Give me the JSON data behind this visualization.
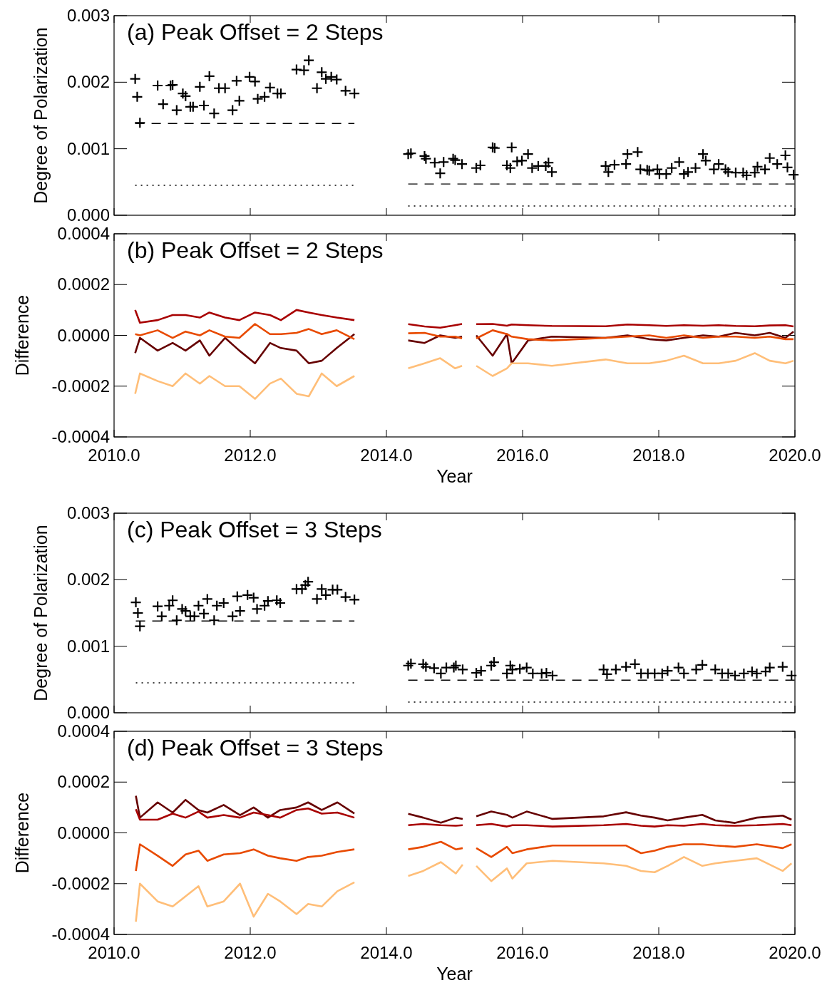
{
  "chart_data": [
    {
      "type": "scatter",
      "title": "(a) Peak Offset = 2 Steps",
      "ylabel": "Degree of Polarization",
      "xlim": [
        2010,
        2020
      ],
      "xticks": [
        2010,
        2012,
        2014,
        2016,
        2018,
        2020
      ],
      "ylim": [
        0,
        0.003
      ],
      "yticks": [
        {
          "value": 0,
          "label": "0.000"
        },
        {
          "value": 0.001,
          "label": "0.001"
        },
        {
          "value": 0.002,
          "label": "0.002"
        },
        {
          "value": 0.003,
          "label": "0.003"
        }
      ],
      "tick_labels": "y",
      "marker": "cross",
      "series": [
        {
          "color": "#000000",
          "x": [
            2010.31,
            2010.34,
            2010.38,
            2010.64,
            2010.72,
            2010.83,
            2010.86,
            2010.92,
            2011.01,
            2011.05,
            2011.12,
            2011.16,
            2011.26,
            2011.32,
            2011.4,
            2011.47,
            2011.54,
            2011.63,
            2011.74,
            2011.8,
            2011.84,
            2011.99,
            2012.07,
            2012.11,
            2012.21,
            2012.29,
            2012.4,
            2012.45,
            2012.68,
            2012.79,
            2012.86,
            2012.98,
            2013.05,
            2013.11,
            2013.19,
            2013.27,
            2013.4,
            2013.53,
            2014.32,
            2014.36,
            2014.56,
            2014.58,
            2014.71,
            2014.79,
            2014.84,
            2014.98,
            2015.01,
            2015.11,
            2015.32,
            2015.38,
            2015.56,
            2015.59,
            2015.77,
            2015.82,
            2015.84,
            2015.92,
            2015.99,
            2016.08,
            2016.14,
            2016.23,
            2016.34,
            2016.38,
            2016.43,
            2017.22,
            2017.26,
            2017.35,
            2017.52,
            2017.54,
            2017.69,
            2017.73,
            2017.83,
            2017.86,
            2017.98,
            2018.01,
            2018.11,
            2018.19,
            2018.3,
            2018.37,
            2018.43,
            2018.54,
            2018.65,
            2018.69,
            2018.81,
            2018.88,
            2018.98,
            2019.02,
            2019.13,
            2019.24,
            2019.29,
            2019.41,
            2019.45,
            2019.56,
            2019.63,
            2019.74,
            2019.86,
            2019.89,
            2019.98
          ],
          "values": [
            0.00205,
            0.00178,
            0.00139,
            0.00195,
            0.00167,
            0.00195,
            0.00196,
            0.00158,
            0.00183,
            0.00179,
            0.00163,
            0.00163,
            0.00193,
            0.00165,
            0.00209,
            0.00153,
            0.00191,
            0.00191,
            0.00158,
            0.00202,
            0.00172,
            0.00208,
            0.00201,
            0.00175,
            0.00178,
            0.00192,
            0.00183,
            0.00183,
            0.00219,
            0.00218,
            0.00233,
            0.00191,
            0.00215,
            0.00205,
            0.00208,
            0.00204,
            0.00187,
            0.00183,
            0.00092,
            0.00093,
            0.00089,
            0.00085,
            0.00079,
            0.00063,
            0.0008,
            0.00085,
            0.00083,
            0.00077,
            0.00071,
            0.00075,
            0.00102,
            0.00101,
            0.00075,
            0.00071,
            0.00102,
            0.00081,
            0.00082,
            0.00092,
            0.00071,
            0.00074,
            0.00074,
            0.00079,
            0.00065,
            0.00074,
            0.00065,
            0.00076,
            0.00077,
            0.00092,
            0.00095,
            0.00069,
            0.00068,
            0.00067,
            0.00069,
            0.00062,
            0.00062,
            0.00071,
            0.0008,
            0.00062,
            0.00065,
            0.00071,
            0.00092,
            0.00082,
            0.00069,
            0.00077,
            0.00069,
            0.00065,
            0.00064,
            0.00064,
            0.0006,
            0.00064,
            0.00073,
            0.00069,
            0.00086,
            0.00077,
            0.0009,
            0.00072,
            0.00061
          ]
        },
        {
          "type": "line",
          "marker": "none",
          "line_style": "dashed",
          "color": "#000000",
          "x": [
            2010.31,
            2013.53
          ],
          "values": [
            0.00138,
            0.00138
          ]
        },
        {
          "type": "line",
          "marker": "none",
          "line_style": "dotted",
          "color": "#000000",
          "x": [
            2010.31,
            2013.53
          ],
          "values": [
            0.00045,
            0.00045
          ]
        },
        {
          "type": "line",
          "marker": "none",
          "line_style": "dashed",
          "color": "#000000",
          "x": [
            2014.32,
            2020
          ],
          "values": [
            0.00047,
            0.00047
          ]
        },
        {
          "type": "line",
          "marker": "none",
          "line_style": "dotted",
          "color": "#000000",
          "x": [
            2014.32,
            2020
          ],
          "values": [
            0.00014,
            0.00014
          ]
        }
      ]
    },
    {
      "type": "line",
      "title": "(b) Peak Offset = 2 Steps",
      "ylabel": "Difference",
      "xlabel": "Year",
      "xlim": [
        2010,
        2020
      ],
      "xticks": [
        {
          "value": 2010,
          "label": "2010.0"
        },
        {
          "value": 2012,
          "label": "2012.0"
        },
        {
          "value": 2014,
          "label": "2014.0"
        },
        {
          "value": 2016,
          "label": "2016.0"
        },
        {
          "value": 2018,
          "label": "2018.0"
        },
        {
          "value": 2020,
          "label": "2020.0"
        }
      ],
      "ylim": [
        -0.0004,
        0.0004
      ],
      "yticks": [
        {
          "value": -0.0004,
          "label": "-0.0004"
        },
        {
          "value": -0.0002,
          "label": "-0.0002"
        },
        {
          "value": 0,
          "label": "0.0000"
        },
        {
          "value": 0.0002,
          "label": "0.0002"
        },
        {
          "value": 0.0004,
          "label": "0.0004"
        }
      ],
      "x": [
        2010.31,
        2010.38,
        2010.64,
        2010.86,
        2011.05,
        2011.26,
        2011.4,
        2011.63,
        2011.84,
        2012.07,
        2012.29,
        2012.45,
        2012.68,
        2012.86,
        2013.05,
        2013.27,
        2013.53,
        2013.9,
        2014.32,
        2014.56,
        2014.79,
        2015.01,
        2015.11,
        2015.2,
        2015.32,
        2015.56,
        2015.77,
        2015.84,
        2016.08,
        2016.43,
        2017.22,
        2017.54,
        2017.86,
        2018.11,
        2018.37,
        2018.65,
        2018.88,
        2019.13,
        2019.41,
        2019.63,
        2019.86,
        2019.98
      ],
      "series": [
        {
          "color": "#660000",
          "values": [
            -7e-05,
            -1e-05,
            -6e-05,
            -3e-05,
            -6e-05,
            -2e-05,
            -8e-05,
            -1e-05,
            -6e-05,
            -0.00011,
            -3e-05,
            -5e-05,
            -6e-05,
            -0.00011,
            -0.0001,
            -5e-05,
            5e-06,
            null,
            -2e-05,
            -3e-05,
            0,
            -1e-05,
            -5e-06,
            null,
            0,
            -8e-05,
            5e-06,
            -0.00011,
            -2e-05,
            -5e-06,
            -1e-05,
            0,
            -1.5e-05,
            -2e-05,
            -1e-05,
            0,
            -5e-06,
            1e-05,
            0,
            1e-05,
            -1e-05,
            1.5e-05
          ]
        },
        {
          "color": "#a80000",
          "values": [
            0.0001,
            5e-05,
            6e-05,
            8e-05,
            8e-05,
            7e-05,
            9e-05,
            7e-05,
            6e-05,
            9e-05,
            8e-05,
            6e-05,
            0.0001,
            9e-05,
            8e-05,
            7e-05,
            6e-05,
            null,
            4.4e-05,
            3.5e-05,
            3e-05,
            4e-05,
            4.5e-05,
            null,
            4.4e-05,
            4.5e-05,
            3.8e-05,
            4.3e-05,
            4e-05,
            3.7e-05,
            3.6e-05,
            4.3e-05,
            4e-05,
            3.7e-05,
            4e-05,
            3.8e-05,
            4e-05,
            3.7e-05,
            3.6e-05,
            3.9e-05,
            4e-05,
            3.5e-05
          ]
        },
        {
          "color": "#e84a00",
          "values": [
            5e-06,
            0,
            2e-05,
            -1e-05,
            1.5e-05,
            0,
            2e-05,
            -5e-06,
            -1e-05,
            4.5e-05,
            5e-06,
            5e-06,
            1e-05,
            2.5e-05,
            5e-06,
            2e-05,
            -1.5e-05,
            null,
            8e-06,
            1e-05,
            -5e-06,
            -5e-06,
            -1.2e-05,
            null,
            -1.2e-05,
            2e-05,
            5e-06,
            -5e-06,
            -1.5e-05,
            -2e-05,
            -1e-05,
            -5e-06,
            0,
            -1e-05,
            0,
            -1e-05,
            -5e-06,
            -5e-06,
            -1e-05,
            -5e-06,
            -1.5e-05,
            -1.5e-05
          ]
        },
        {
          "color": "#ffbe78",
          "values": [
            -0.00023,
            -0.00015,
            -0.00018,
            -0.0002,
            -0.00015,
            -0.00019,
            -0.00016,
            -0.0002,
            -0.0002,
            -0.00025,
            -0.00019,
            -0.00017,
            -0.00023,
            -0.00024,
            -0.00015,
            -0.0002,
            -0.00016,
            null,
            -0.00013,
            -0.00011,
            -9e-05,
            -0.00013,
            -0.00012,
            null,
            -0.00012,
            -0.00016,
            -0.00013,
            -0.00011,
            -0.00011,
            -0.00012,
            -9.5e-05,
            -0.00011,
            -0.00011,
            -0.0001,
            -8e-05,
            -0.00011,
            -0.00011,
            -0.0001,
            -7e-05,
            -0.0001,
            -0.00011,
            -0.0001
          ]
        }
      ]
    },
    {
      "type": "scatter",
      "title": "(c) Peak Offset = 3 Steps",
      "ylabel": "Degree of Polarization",
      "xlim": [
        2010,
        2020
      ],
      "xticks": [
        2010,
        2012,
        2014,
        2016,
        2018,
        2020
      ],
      "ylim": [
        0,
        0.003
      ],
      "yticks": [
        {
          "value": 0,
          "label": "0.000"
        },
        {
          "value": 0.001,
          "label": "0.001"
        },
        {
          "value": 0.002,
          "label": "0.002"
        },
        {
          "value": 0.003,
          "label": "0.003"
        }
      ],
      "tick_labels": "y",
      "marker": "cross",
      "series": [
        {
          "color": "#000000",
          "x": [
            2010.32,
            2010.35,
            2010.38,
            2010.64,
            2010.7,
            2010.81,
            2010.86,
            2010.92,
            2011.0,
            2011.05,
            2011.12,
            2011.18,
            2011.24,
            2011.32,
            2011.37,
            2011.47,
            2011.51,
            2011.61,
            2011.74,
            2011.81,
            2011.85,
            2011.96,
            2012.05,
            2012.1,
            2012.21,
            2012.26,
            2012.39,
            2012.44,
            2012.68,
            2012.76,
            2012.81,
            2012.85,
            2012.98,
            2013.05,
            2013.11,
            2013.21,
            2013.28,
            2013.4,
            2013.53,
            2014.32,
            2014.36,
            2014.54,
            2014.58,
            2014.7,
            2014.8,
            2014.88,
            2014.99,
            2015.02,
            2015.12,
            2015.32,
            2015.39,
            2015.54,
            2015.58,
            2015.77,
            2015.82,
            2015.85,
            2015.96,
            2016.06,
            2016.15,
            2016.28,
            2016.35,
            2016.44,
            2017.19,
            2017.24,
            2017.37,
            2017.52,
            2017.65,
            2017.74,
            2017.84,
            2017.94,
            2018.05,
            2018.13,
            2018.29,
            2018.37,
            2018.55,
            2018.64,
            2018.83,
            2018.93,
            2019.02,
            2019.12,
            2019.25,
            2019.37,
            2019.44,
            2019.57,
            2019.63,
            2019.82,
            2019.95
          ],
          "values": [
            0.00166,
            0.0015,
            0.0013,
            0.0016,
            0.00145,
            0.00161,
            0.00169,
            0.00139,
            0.00156,
            0.00153,
            0.00145,
            0.00145,
            0.00161,
            0.00149,
            0.00171,
            0.00139,
            0.00161,
            0.00165,
            0.00145,
            0.00175,
            0.00153,
            0.00177,
            0.00173,
            0.00156,
            0.00161,
            0.00168,
            0.00169,
            0.00165,
            0.00186,
            0.00186,
            0.00192,
            0.00197,
            0.00171,
            0.00186,
            0.00177,
            0.00185,
            0.00185,
            0.00174,
            0.0017,
            0.00071,
            0.00074,
            0.00073,
            0.00069,
            0.00067,
            0.00059,
            0.00068,
            0.00068,
            0.00071,
            0.00065,
            0.0006,
            0.00063,
            0.00071,
            0.00076,
            0.00059,
            0.00071,
            0.00065,
            0.00066,
            0.00068,
            0.00059,
            0.00059,
            0.0006,
            0.00056,
            0.00065,
            0.00058,
            0.00065,
            0.00069,
            0.00073,
            0.00059,
            0.00059,
            0.00059,
            0.00059,
            0.00063,
            0.00068,
            0.00059,
            0.00065,
            0.00072,
            0.00065,
            0.00059,
            0.00059,
            0.00056,
            0.00059,
            0.00062,
            0.00059,
            0.00062,
            0.00068,
            0.00069,
            0.00056
          ]
        },
        {
          "type": "line",
          "marker": "none",
          "line_style": "dashed",
          "color": "#000000",
          "x": [
            2010.32,
            2013.53
          ],
          "values": [
            0.00138,
            0.00138
          ]
        },
        {
          "type": "line",
          "marker": "none",
          "line_style": "dotted",
          "color": "#000000",
          "x": [
            2010.32,
            2013.53
          ],
          "values": [
            0.00045,
            0.00045
          ]
        },
        {
          "type": "line",
          "marker": "none",
          "line_style": "dashed",
          "color": "#000000",
          "x": [
            2014.32,
            2020
          ],
          "values": [
            0.00049,
            0.00049
          ]
        },
        {
          "type": "line",
          "marker": "none",
          "line_style": "dotted",
          "color": "#000000",
          "x": [
            2014.32,
            2020
          ],
          "values": [
            0.00016,
            0.00016
          ]
        }
      ]
    },
    {
      "type": "line",
      "title": "(d) Peak Offset = 3 Steps",
      "ylabel": "Difference",
      "xlabel": "Year",
      "xlim": [
        2010,
        2020
      ],
      "xticks": [
        {
          "value": 2010,
          "label": "2010.0"
        },
        {
          "value": 2012,
          "label": "2012.0"
        },
        {
          "value": 2014,
          "label": "2014.0"
        },
        {
          "value": 2016,
          "label": "2016.0"
        },
        {
          "value": 2018,
          "label": "2018.0"
        },
        {
          "value": 2020,
          "label": "2020.0"
        }
      ],
      "ylim": [
        -0.0004,
        0.0004
      ],
      "yticks": [
        {
          "value": -0.0004,
          "label": "-0.0004"
        },
        {
          "value": -0.0002,
          "label": "-0.0002"
        },
        {
          "value": 0,
          "label": "0.0000"
        },
        {
          "value": 0.0002,
          "label": "0.0002"
        },
        {
          "value": 0.0004,
          "label": "0.0004"
        }
      ],
      "x": [
        2010.32,
        2010.38,
        2010.64,
        2010.86,
        2011.05,
        2011.24,
        2011.37,
        2011.61,
        2011.85,
        2012.05,
        2012.26,
        2012.44,
        2012.68,
        2012.85,
        2013.05,
        2013.28,
        2013.53,
        2013.9,
        2014.32,
        2014.54,
        2014.8,
        2015.02,
        2015.12,
        2015.2,
        2015.32,
        2015.54,
        2015.77,
        2015.85,
        2016.06,
        2016.44,
        2017.19,
        2017.52,
        2017.74,
        2017.94,
        2018.13,
        2018.37,
        2018.64,
        2018.83,
        2019.12,
        2019.44,
        2019.82,
        2019.95
      ],
      "series": [
        {
          "color": "#660000",
          "values": [
            0.000146,
            6e-05,
            0.00012,
            8e-05,
            0.00013,
            9e-05,
            8e-05,
            0.00011,
            7e-05,
            0.0001,
            6e-05,
            9e-05,
            0.0001,
            0.00012,
            9e-05,
            0.00012,
            7.6e-05,
            null,
            7.5e-05,
            6e-05,
            4e-05,
            6e-05,
            5.5e-05,
            null,
            6.5e-05,
            8.4e-05,
            7.1e-05,
            6e-05,
            8.4e-05,
            5.5e-05,
            6.5e-05,
            8.1e-05,
            6.8e-05,
            6e-05,
            4.9e-05,
            6e-05,
            7.1e-05,
            4.9e-05,
            3.9e-05,
            6e-05,
            6.8e-05,
            5.2e-05
          ]
        },
        {
          "color": "#a80000",
          "values": [
            9.3e-05,
            5.2e-05,
            5.2e-05,
            7.6e-05,
            6e-05,
            8.4e-05,
            6e-05,
            7e-05,
            6e-05,
            8e-05,
            7e-05,
            6e-05,
            9e-05,
            9.6e-05,
            7.6e-05,
            8e-05,
            6e-05,
            null,
            3e-05,
            3.5e-05,
            3e-05,
            2.8e-05,
            3e-05,
            null,
            3e-05,
            3.5e-05,
            2.5e-05,
            3e-05,
            3e-05,
            2.5e-05,
            3e-05,
            3.5e-05,
            2.8e-05,
            2.5e-05,
            3e-05,
            2.8e-05,
            3.5e-05,
            3e-05,
            2.8e-05,
            3e-05,
            3.5e-05,
            3e-05
          ]
        },
        {
          "color": "#e84a00",
          "values": [
            -0.00015,
            -4.5e-05,
            -9e-05,
            -0.00013,
            -8.5e-05,
            -7e-05,
            -0.00011,
            -8.5e-05,
            -8e-05,
            -6.5e-05,
            -9e-05,
            -0.0001,
            -0.00011,
            -9.5e-05,
            -9e-05,
            -7.5e-05,
            -6.5e-05,
            null,
            -6.5e-05,
            -5.5e-05,
            -3.5e-05,
            -6.5e-05,
            -6e-05,
            null,
            -6e-05,
            -9.5e-05,
            -5.5e-05,
            -8e-05,
            -6.5e-05,
            -5e-05,
            -5e-05,
            -5e-05,
            -8e-05,
            -7e-05,
            -5.5e-05,
            -4.5e-05,
            -4.5e-05,
            -5e-05,
            -5.5e-05,
            -4.5e-05,
            -6e-05,
            -4.5e-05
          ]
        },
        {
          "color": "#ffbe78",
          "values": [
            -0.00035,
            -0.0002,
            -0.00027,
            -0.00029,
            -0.00025,
            -0.00021,
            -0.00029,
            -0.00027,
            -0.0002,
            -0.00033,
            -0.00024,
            -0.00027,
            -0.00032,
            -0.00028,
            -0.00029,
            -0.00023,
            -0.000195,
            null,
            -0.00017,
            -0.00015,
            -0.000115,
            -0.00016,
            -0.000125,
            null,
            -0.00013,
            -0.00019,
            -0.00014,
            -0.00018,
            -0.00012,
            -0.00011,
            -0.00012,
            -0.00013,
            -0.00015,
            -0.000155,
            -0.00013,
            -9.5e-05,
            -0.00013,
            -0.00012,
            -0.00011,
            -0.0001,
            -0.00015,
            -0.00012
          ]
        }
      ]
    }
  ]
}
